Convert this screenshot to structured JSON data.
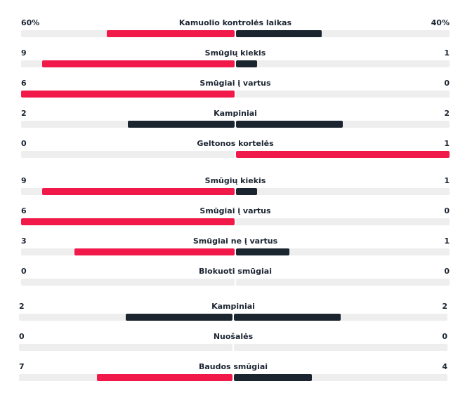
{
  "colors": {
    "leader": "#f0194a",
    "trailer": "#1b2530",
    "track": "#eeeeef"
  },
  "stats": [
    {
      "label": "Kamuolio kontrolės laikas",
      "home": "60%",
      "away": "40%",
      "home_share": 0.6,
      "away_share": 0.4
    },
    {
      "label": "Smūgių kiekis",
      "home": "9",
      "away": "1",
      "home_share": 0.9,
      "away_share": 0.1
    },
    {
      "label": "Smūgiai į vartus",
      "home": "6",
      "away": "0",
      "home_share": 1.0,
      "away_share": 0.0
    },
    {
      "label": "Kampiniai",
      "home": "2",
      "away": "2",
      "home_share": 0.5,
      "away_share": 0.5
    },
    {
      "label": "Geltonos kortelės",
      "home": "0",
      "away": "1",
      "home_share": 0.0,
      "away_share": 1.0
    },
    {
      "label": "Smūgių kiekis",
      "home": "9",
      "away": "1",
      "home_share": 0.9,
      "away_share": 0.1
    },
    {
      "label": "Smūgiai į vartus",
      "home": "6",
      "away": "0",
      "home_share": 1.0,
      "away_share": 0.0
    },
    {
      "label": "Smūgiai ne į vartus",
      "home": "3",
      "away": "1",
      "home_share": 0.75,
      "away_share": 0.25
    },
    {
      "label": "Blokuoti smūgiai",
      "home": "0",
      "away": "0",
      "home_share": 0.0,
      "away_share": 0.0
    },
    {
      "label": "Kampiniai",
      "home": "2",
      "away": "2",
      "home_share": 0.5,
      "away_share": 0.5
    },
    {
      "label": "Nuošalės",
      "home": "0",
      "away": "0",
      "home_share": 0.0,
      "away_share": 0.0
    },
    {
      "label": "Baudos smūgiai",
      "home": "7",
      "away": "4",
      "home_share": 0.636,
      "away_share": 0.364
    }
  ]
}
